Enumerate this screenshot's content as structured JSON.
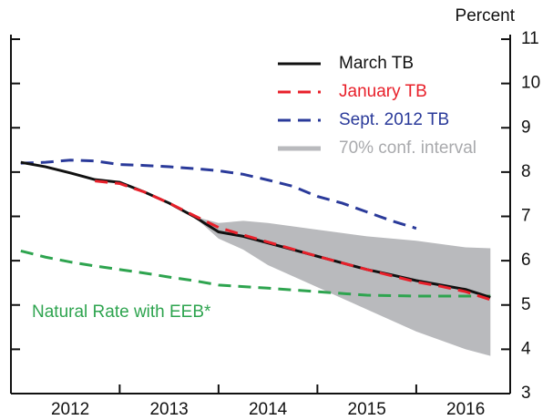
{
  "chart_data": {
    "type": "line",
    "y_label": "Percent",
    "annotation": "Natural Rate with EEB*",
    "annotation_color": "#2ea44f",
    "xlim": [
      2011.9,
      2016.95
    ],
    "xticks": [
      {
        "value": 2012.5,
        "label": "2012"
      },
      {
        "value": 2013.5,
        "label": "2013"
      },
      {
        "value": 2014.5,
        "label": "2014"
      },
      {
        "value": 2015.5,
        "label": "2015"
      },
      {
        "value": 2016.5,
        "label": "2016"
      }
    ],
    "ylim": [
      3,
      11
    ],
    "yticks": [
      3,
      4,
      5,
      6,
      7,
      8,
      9,
      10,
      11
    ],
    "legend": "top-right",
    "band": {
      "name": "70% conf. interval",
      "color": "#b9babd",
      "x": [
        2013.75,
        2014.0,
        2014.25,
        2014.5,
        2015.0,
        2015.5,
        2016.0,
        2016.5,
        2016.75
      ],
      "upper": [
        7.0,
        6.85,
        6.9,
        6.85,
        6.7,
        6.55,
        6.45,
        6.3,
        6.28
      ],
      "lower": [
        7.0,
        6.5,
        6.25,
        5.9,
        5.4,
        4.9,
        4.4,
        4.0,
        3.85
      ]
    },
    "series": [
      {
        "name": "March TB",
        "color": "#111111",
        "dashed": false,
        "x": [
          2012.0,
          2012.25,
          2012.5,
          2012.75,
          2013.0,
          2013.25,
          2013.5,
          2013.75,
          2014.0,
          2014.25,
          2014.5,
          2014.75,
          2015.0,
          2015.25,
          2015.5,
          2015.75,
          2016.0,
          2016.25,
          2016.5,
          2016.75
        ],
        "values": [
          8.22,
          8.12,
          7.98,
          7.83,
          7.77,
          7.55,
          7.3,
          7.0,
          6.65,
          6.55,
          6.4,
          6.25,
          6.1,
          5.95,
          5.8,
          5.68,
          5.55,
          5.45,
          5.35,
          5.17
        ]
      },
      {
        "name": "January TB",
        "color": "#e8202a",
        "dashed": true,
        "x": [
          2012.75,
          2013.0,
          2013.25,
          2013.5,
          2013.75,
          2014.0,
          2014.25,
          2014.5,
          2014.75,
          2015.0,
          2015.25,
          2015.5,
          2015.75,
          2016.0,
          2016.25,
          2016.5,
          2016.75
        ],
        "values": [
          7.8,
          7.74,
          7.55,
          7.3,
          7.02,
          6.75,
          6.58,
          6.42,
          6.26,
          6.1,
          5.95,
          5.8,
          5.66,
          5.52,
          5.42,
          5.3,
          5.12
        ]
      },
      {
        "name": "Sept. 2012 TB",
        "color": "#2a3a9a",
        "dashed": true,
        "x": [
          2012.0,
          2012.25,
          2012.5,
          2012.75,
          2013.0,
          2013.25,
          2013.5,
          2013.75,
          2014.0,
          2014.25,
          2014.5,
          2014.75,
          2015.0,
          2015.25,
          2015.5,
          2015.75,
          2016.0
        ],
        "values": [
          8.2,
          8.22,
          8.27,
          8.25,
          8.17,
          8.15,
          8.12,
          8.08,
          8.03,
          7.95,
          7.82,
          7.68,
          7.45,
          7.3,
          7.1,
          6.9,
          6.73
        ]
      },
      {
        "name": null,
        "color": "#2ea44f",
        "dashed": true,
        "x": [
          2012.0,
          2012.25,
          2012.5,
          2012.75,
          2013.0,
          2013.25,
          2013.5,
          2013.75,
          2014.0,
          2014.5,
          2015.0,
          2015.5,
          2016.0,
          2016.75
        ],
        "values": [
          6.22,
          6.08,
          5.97,
          5.88,
          5.8,
          5.72,
          5.63,
          5.55,
          5.45,
          5.38,
          5.3,
          5.22,
          5.2,
          5.2
        ]
      }
    ]
  }
}
